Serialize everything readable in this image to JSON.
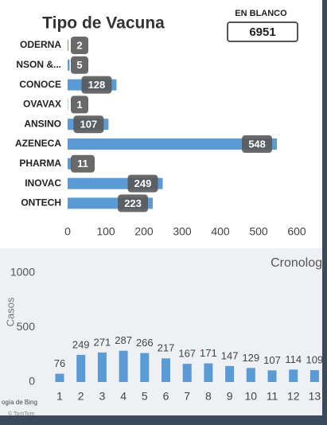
{
  "card": {
    "label": "EN BLANCO",
    "value": "6951"
  },
  "map_credits": [
    "ogía de Bing",
    "© TomTom"
  ],
  "chart_data": [
    {
      "type": "hbar",
      "title": "Tipo de Vacuna",
      "categories": [
        "ODERNA",
        "NSON &...",
        "CONOCE",
        "OVAVAX",
        "ANSINO",
        "AZENECA",
        "PHARMA",
        "INOVAC",
        "ONTECH"
      ],
      "values": [
        2,
        5,
        128,
        1,
        107,
        548,
        11,
        249,
        223
      ],
      "color": "#5b9bd5",
      "xlim": [
        0,
        600
      ],
      "xticks": [
        0,
        100,
        200,
        300,
        400,
        500,
        600
      ]
    },
    {
      "type": "bar",
      "title": "Cronolog",
      "y_label": "Casos",
      "categories": [
        "1",
        "2",
        "3",
        "4",
        "5",
        "6",
        "7",
        "8",
        "9",
        "10",
        "11",
        "12",
        "13"
      ],
      "values": [
        76,
        249,
        271,
        287,
        266,
        217,
        167,
        171,
        147,
        129,
        107,
        114,
        109
      ],
      "color": "#5b9bd5",
      "ylim": [
        0,
        1000
      ],
      "yticks": [
        0,
        500,
        1000
      ]
    }
  ]
}
